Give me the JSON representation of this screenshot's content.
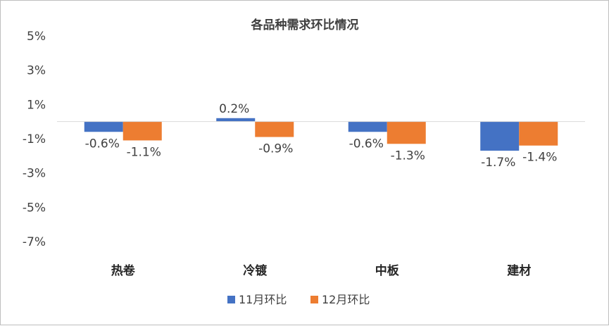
{
  "chart_data": {
    "type": "bar",
    "title": "各品种需求环比情况",
    "categories": [
      "热卷",
      "冷镀",
      "中板",
      "建材"
    ],
    "series": [
      {
        "name": "11月环比",
        "values": [
          -0.6,
          0.2,
          -0.6,
          -1.7
        ],
        "labels": [
          "-0.6%",
          "0.2%",
          "-0.6%",
          "-1.7%"
        ],
        "color": "#4472C4"
      },
      {
        "name": "12月环比",
        "values": [
          -1.1,
          -0.9,
          -1.3,
          -1.4
        ],
        "labels": [
          "-1.1%",
          "-0.9%",
          "-1.3%",
          "-1.4%"
        ],
        "color": "#ED7D31"
      }
    ],
    "yticks": [
      "5%",
      "3%",
      "1%",
      "-1%",
      "-3%",
      "-5%",
      "-7%"
    ],
    "ylim": [
      -7,
      5
    ],
    "legend": "bottom",
    "grid": false
  }
}
